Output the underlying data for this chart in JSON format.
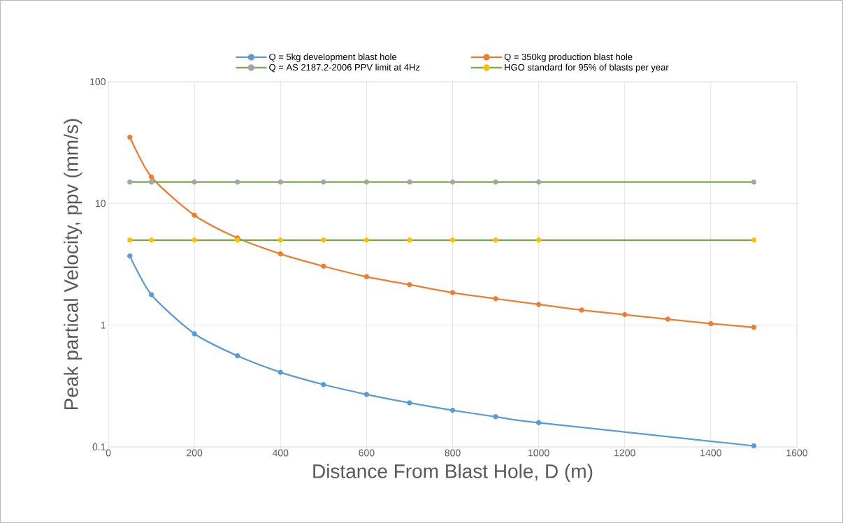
{
  "chart_data": {
    "type": "line",
    "xlabel": "Distance From Blast Hole, D (m)",
    "ylabel": "Peak partical Velocity, ppv (mm/s)",
    "log": "y",
    "grid": true,
    "legend": "top",
    "marker": "circle",
    "line_style": "solid",
    "xlim": [
      0,
      1600
    ],
    "xticks": [
      0,
      200,
      400,
      600,
      800,
      1000,
      1200,
      1400,
      1600
    ],
    "ylim": [
      0.1,
      100
    ],
    "yticks": [
      0.1,
      1,
      10,
      100
    ],
    "series": [
      {
        "name": "Q = 5kg development blast hole",
        "color": "#5b9bd5",
        "x": [
          50,
          100,
          200,
          300,
          400,
          500,
          600,
          700,
          800,
          900,
          1000,
          1500
        ],
        "values": [
          3.7,
          1.78,
          0.85,
          0.56,
          0.41,
          0.325,
          0.27,
          0.23,
          0.2,
          0.177,
          0.158,
          0.102
        ]
      },
      {
        "name": "Q = 350kg production blast hole",
        "color": "#ed7d31",
        "x": [
          50,
          100,
          200,
          300,
          400,
          500,
          600,
          700,
          800,
          900,
          1000,
          1100,
          1200,
          1300,
          1400,
          1500
        ],
        "values": [
          35,
          16.5,
          8.0,
          5.2,
          3.85,
          3.05,
          2.5,
          2.15,
          1.85,
          1.65,
          1.48,
          1.33,
          1.22,
          1.12,
          1.03,
          0.96
        ]
      },
      {
        "name": "Q = AS 2187.2-2006 PPV limit at 4Hz",
        "color": "#70ad47",
        "colors": [
          "#a5a5a5",
          "#a5a5a5",
          "#a5a5a5",
          "#a5a5a5",
          "#a5a5a5",
          "#a5a5a5",
          "#a5a5a5",
          "#a5a5a5",
          "#a5a5a5",
          "#a5a5a5",
          "#a5a5a5",
          "#a5a5a5"
        ],
        "x": [
          50,
          100,
          200,
          300,
          400,
          500,
          600,
          700,
          800,
          900,
          1000,
          1500
        ],
        "values": [
          15,
          15,
          15,
          15,
          15,
          15,
          15,
          15,
          15,
          15,
          15,
          15
        ]
      },
      {
        "name": "HGO standard for 95% of blasts per year",
        "color": "#70ad47",
        "colors": [
          "#ffc000",
          "#ffc000",
          "#ffc000",
          "#ffc000",
          "#ffc000",
          "#ffc000",
          "#ffc000",
          "#ffc000",
          "#ffc000",
          "#ffc000",
          "#ffc000",
          "#ffc000"
        ],
        "x": [
          50,
          100,
          200,
          300,
          400,
          500,
          600,
          700,
          800,
          900,
          1000,
          1500
        ],
        "values": [
          5,
          5,
          5,
          5,
          5,
          5,
          5,
          5,
          5,
          5,
          5,
          5
        ]
      }
    ]
  }
}
